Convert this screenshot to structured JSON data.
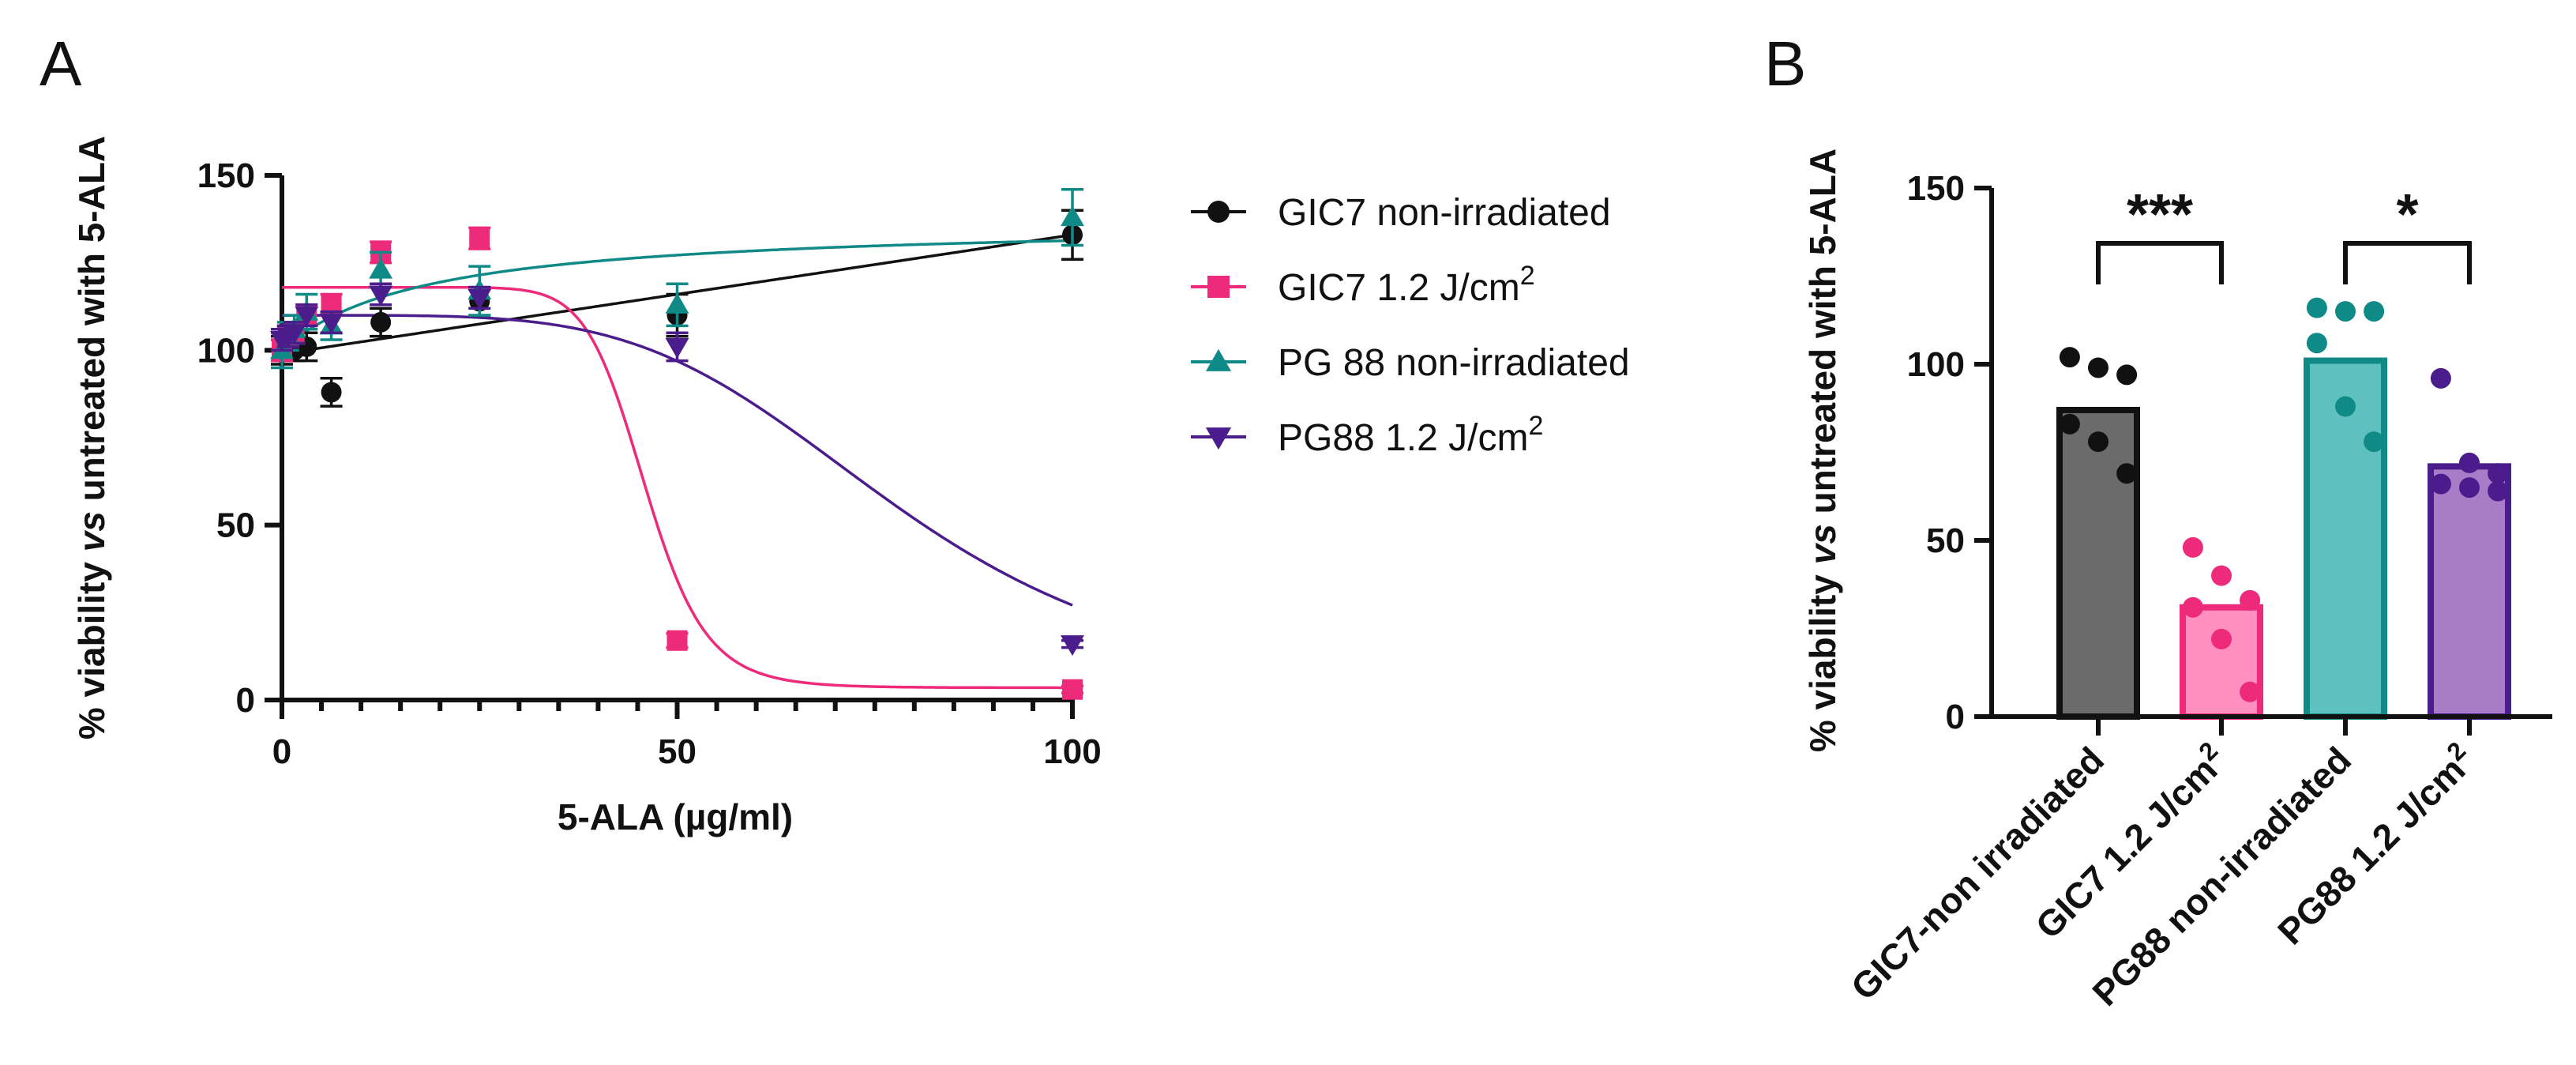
{
  "figure": {
    "panel_a_label": "A",
    "panel_b_label": "B"
  },
  "chart_data": [
    {
      "type": "scatter",
      "panel": "A",
      "xlabel": "5-ALA (µg/ml)",
      "ylabel": "% viability vs untreated with 5-ALA",
      "ylabel_parts": {
        "pre": "% viability ",
        "italic": "vs",
        "post": " untreated with 5-ALA"
      },
      "xlim": [
        0,
        100
      ],
      "ylim": [
        0,
        150
      ],
      "xticks": [
        0,
        50,
        100
      ],
      "yticks": [
        0,
        50,
        100,
        150
      ],
      "xticks_minor": [
        5,
        10,
        15,
        20,
        25,
        30,
        35,
        40,
        45,
        55,
        60,
        65,
        70,
        75,
        80,
        85,
        90,
        95
      ],
      "series": [
        {
          "name": "GIC7 non-irradiated",
          "name_main": "GIC7 non-irradiated",
          "name_sup": "",
          "color": "#111111",
          "marker": "circle",
          "x": [
            0,
            0.78,
            1.56,
            3.125,
            6.25,
            12.5,
            25,
            50,
            100
          ],
          "y": [
            100,
            100,
            100,
            101,
            88,
            108,
            114,
            110,
            133
          ],
          "err": [
            4,
            3,
            3,
            4,
            4,
            4,
            4,
            6,
            7
          ],
          "fit": "linear",
          "fit_params": {
            "intercept": 99,
            "slope": 0.34
          }
        },
        {
          "name": "GIC7 1.2 J/cm2",
          "name_main": "GIC7 1.2 J/cm",
          "name_sup": "2",
          "color": "#ee2a7b",
          "marker": "square",
          "x": [
            0,
            0.78,
            1.56,
            3.125,
            6.25,
            12.5,
            25,
            50,
            100
          ],
          "y": [
            100,
            104,
            105,
            110,
            113,
            128,
            132,
            17,
            3
          ],
          "err": [
            3,
            3,
            3,
            3,
            3,
            3,
            3,
            2,
            1
          ],
          "fit": "sigmoid",
          "fit_params": {
            "top": 118,
            "bottom": 3.5,
            "ic50": 46,
            "hill": 12
          }
        },
        {
          "name": "PG 88 non-irradiated",
          "name_main": "PG 88 non-irradiated",
          "name_sup": "",
          "color": "#0f8a87",
          "marker": "triangle-up",
          "x": [
            0,
            0.78,
            1.56,
            3.125,
            6.25,
            12.5,
            25,
            50,
            100
          ],
          "y": [
            100,
            104,
            106,
            111,
            107,
            123,
            117,
            113,
            138
          ],
          "err": [
            5,
            4,
            4,
            5,
            4,
            5,
            7,
            6,
            8
          ],
          "fit": "saturating",
          "fit_params": {
            "base": 100,
            "max": 37,
            "k": 18
          }
        },
        {
          "name": "PG88 1.2 J/cm2",
          "name_main": "PG88 1.2 J/cm",
          "name_sup": "2",
          "color": "#4b1d8c",
          "marker": "triangle-down",
          "x": [
            0,
            0.78,
            1.56,
            3.125,
            6.25,
            12.5,
            25,
            50,
            100
          ],
          "y": [
            103,
            104,
            105,
            110,
            108,
            116,
            115,
            101,
            16
          ],
          "err": [
            3,
            3,
            3,
            3,
            3,
            3,
            3,
            4,
            1
          ],
          "fit": "sigmoid",
          "fit_params": {
            "top": 110,
            "bottom": 0,
            "ic50": 78,
            "hill": 4.5
          }
        }
      ]
    },
    {
      "type": "bar",
      "panel": "B",
      "ylabel": "% viability vs untreated with 5-ALA",
      "ylabel_parts": {
        "pre": "% viability ",
        "italic": "vs",
        "post": " untreated with 5-ALA"
      },
      "ylim": [
        0,
        150
      ],
      "yticks": [
        0,
        50,
        100,
        150
      ],
      "categories": [
        "GIC7-non irradiated",
        "GIC7 1.2 J/cm2",
        "PG88 non-irradiated",
        "PG88 1.2 J/cm2"
      ],
      "category_labels": [
        {
          "main": "GIC7-non irradiated",
          "sup": ""
        },
        {
          "main": "GIC7 1.2 J/cm",
          "sup": "2"
        },
        {
          "main": "PG88 non-irradiated",
          "sup": ""
        },
        {
          "main": "PG88 1.2 J/cm",
          "sup": "2"
        }
      ],
      "values": [
        87,
        31,
        101,
        71
      ],
      "fill_colors": [
        "#6b6b6b",
        "#ff8fbf",
        "#5fc1bf",
        "#a87cc7"
      ],
      "edge_colors": [
        "#111111",
        "#ee2a7b",
        "#0f8a87",
        "#4b1d8c"
      ],
      "points": [
        [
          102,
          99,
          97,
          83,
          78,
          69
        ],
        [
          48,
          40,
          33,
          31,
          22,
          7
        ],
        [
          116,
          115,
          115,
          106,
          88,
          78
        ],
        [
          96,
          72,
          69,
          66,
          65,
          64
        ]
      ],
      "comparisons": [
        {
          "from": 0,
          "to": 1,
          "label": "***"
        },
        {
          "from": 2,
          "to": 3,
          "label": "*"
        }
      ]
    }
  ]
}
